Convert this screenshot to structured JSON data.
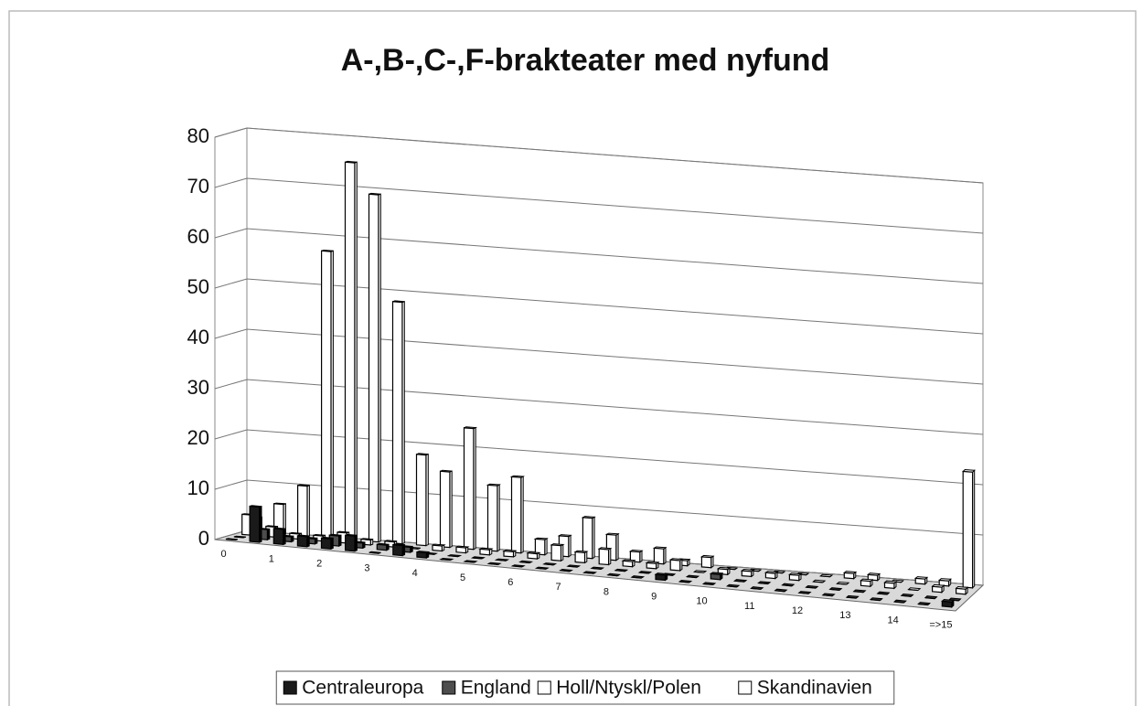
{
  "chart_data": {
    "type": "bar3d",
    "title": "A-,B-,C-,F-brakteater med nyfund",
    "categories": [
      "0",
      null,
      "1",
      null,
      "2",
      null,
      "3",
      null,
      "4",
      null,
      "5",
      null,
      "6",
      null,
      "7",
      null,
      "8",
      null,
      "9",
      null,
      "10",
      null,
      "11",
      null,
      "12",
      null,
      "13",
      null,
      "14",
      null,
      "=>15"
    ],
    "series": [
      {
        "name": "Centraleuropa",
        "color": "#1a1a1a",
        "values": [
          0,
          7,
          3,
          2,
          2,
          3,
          0,
          2,
          1,
          0,
          0,
          0,
          0,
          0,
          0,
          0,
          0,
          0,
          1,
          0,
          0,
          0,
          0,
          0,
          0,
          0,
          0,
          0,
          0,
          0,
          1
        ]
      },
      {
        "name": "England",
        "color": "#4d4d4d",
        "values": [
          0,
          2,
          1,
          1,
          2,
          1,
          1,
          1,
          0,
          0,
          0,
          0,
          0,
          0,
          0,
          0,
          0,
          0,
          0,
          0,
          1,
          0,
          0,
          0,
          0,
          0,
          0,
          0,
          0,
          0,
          0
        ]
      },
      {
        "name": "Holl/Ntyskl/Polen",
        "color": "#ffffff",
        "values": [
          4,
          2,
          1,
          1,
          2,
          1,
          1,
          0,
          1,
          1,
          1,
          1,
          1,
          3,
          2,
          3,
          1,
          1,
          2,
          0,
          1,
          1,
          1,
          1,
          0,
          0,
          1,
          1,
          0,
          1,
          1
        ]
      },
      {
        "name": "Skandinavien",
        "color": "#ffffff",
        "values": [
          3,
          6,
          10,
          57,
          75,
          69,
          48,
          18,
          15,
          24,
          13,
          15,
          3,
          4,
          8,
          5,
          2,
          3,
          1,
          2,
          0,
          0,
          0,
          0,
          0,
          1,
          1,
          0,
          1,
          1,
          23
        ]
      }
    ],
    "ylim": [
      0,
      80
    ],
    "yticks": [
      0,
      10,
      20,
      30,
      40,
      50,
      60,
      70,
      80
    ],
    "grid": true,
    "legend": "bottom"
  }
}
